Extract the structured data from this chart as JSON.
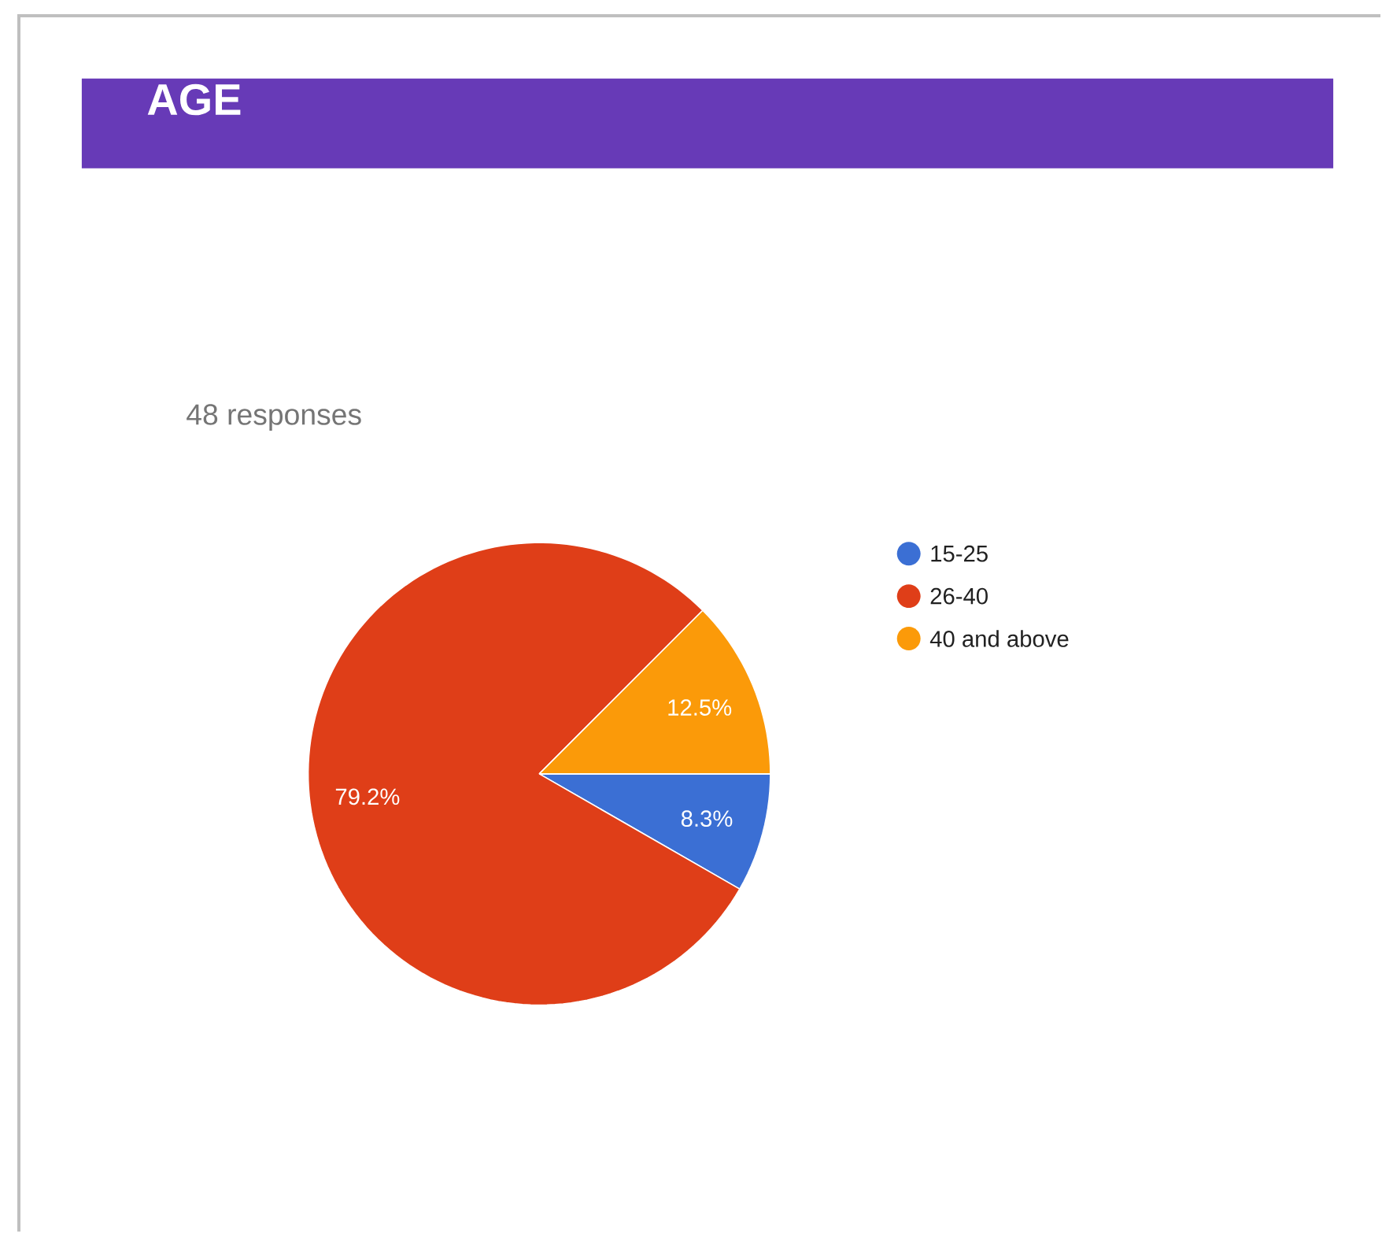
{
  "chart_data": {
    "type": "pie",
    "title": "AGE",
    "subtitle": "48 responses",
    "categories": [
      "15-25",
      "26-40",
      "40 and above"
    ],
    "values": [
      8.3,
      79.2,
      12.5
    ],
    "value_labels": [
      "8.3%",
      "79.2%",
      "12.5%"
    ],
    "colors": [
      "#3b6fd4",
      "#df3e18",
      "#fb9a09"
    ],
    "legend": "right"
  }
}
